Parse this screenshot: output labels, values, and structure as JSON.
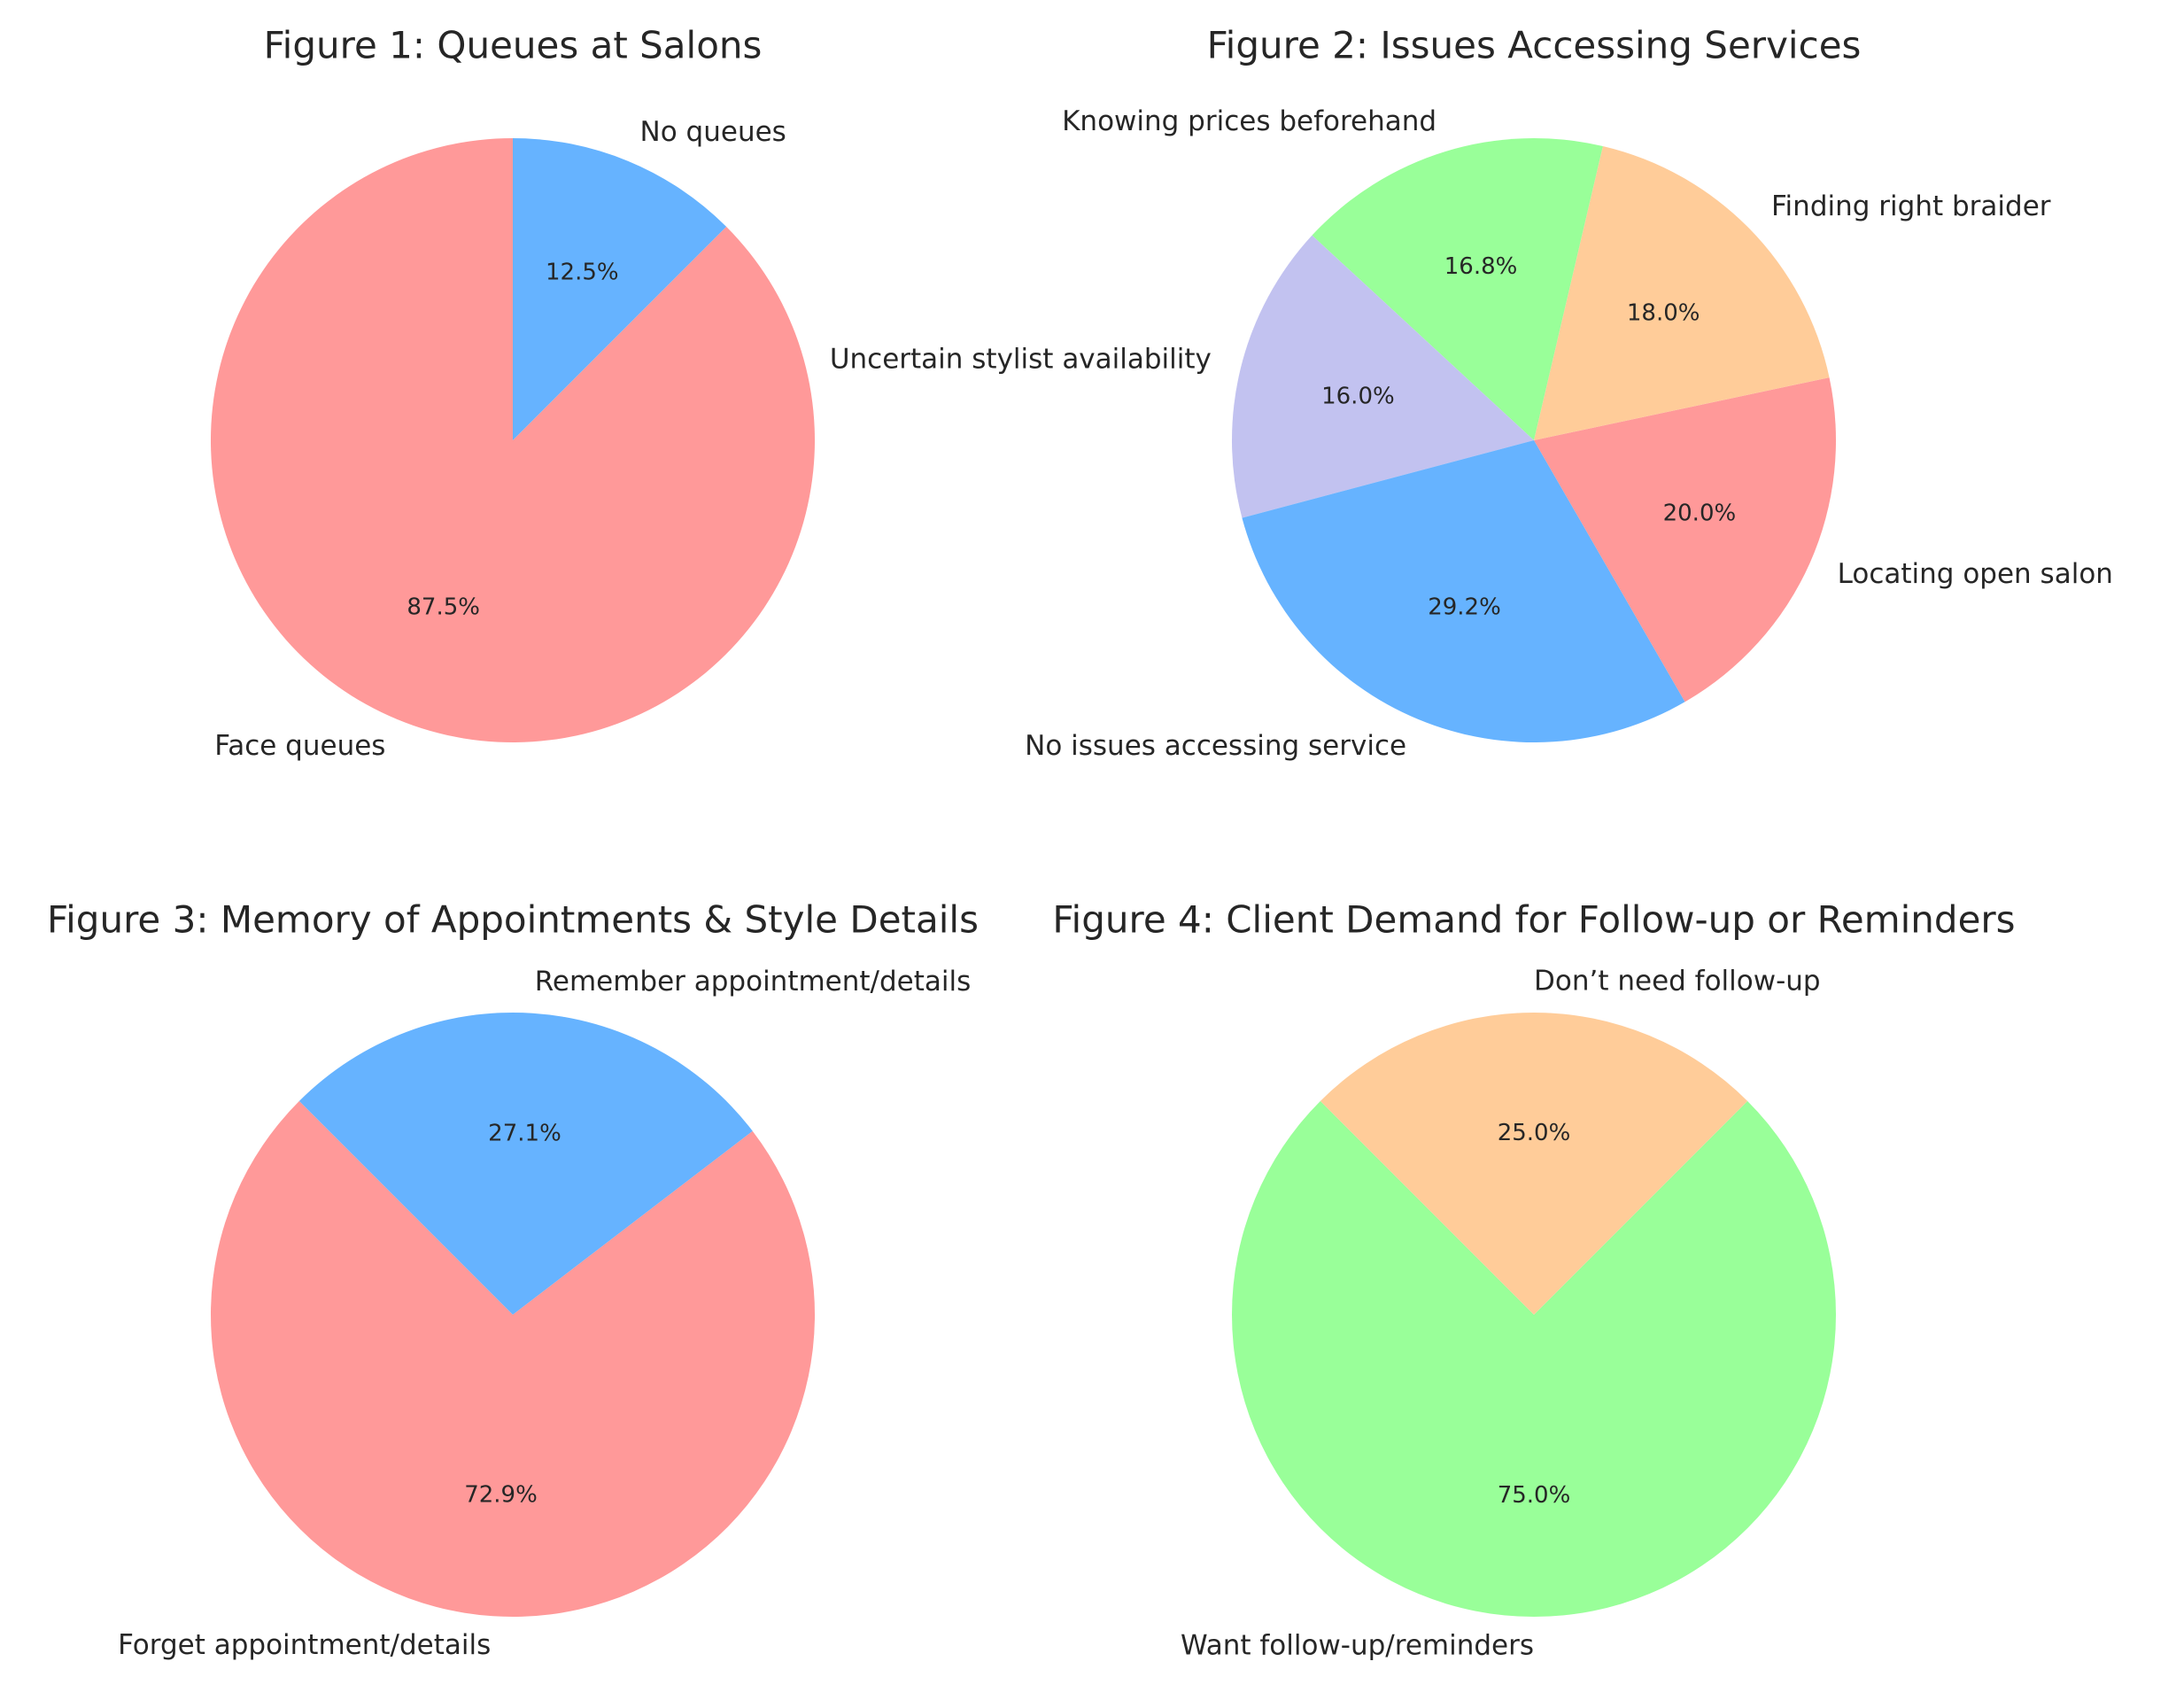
{
  "chart_data": [
    {
      "type": "pie",
      "title": "Figure 1: Queues at Salons",
      "slices": [
        {
          "label": "Face queues",
          "value": 87.5,
          "pct_label": "87.5%",
          "color": "#ff9999"
        },
        {
          "label": "No queues",
          "value": 12.5,
          "pct_label": "12.5%",
          "color": "#66b3ff"
        }
      ]
    },
    {
      "type": "pie",
      "title": "Figure 2: Issues Accessing Services",
      "slices": [
        {
          "label": "Locating open salon",
          "value": 20.0,
          "pct_label": "20.0%",
          "color": "#ff9999"
        },
        {
          "label": "Finding right braider",
          "value": 18.0,
          "pct_label": "18.0%",
          "color": "#ffcc99"
        },
        {
          "label": "Knowing prices beforehand",
          "value": 16.8,
          "pct_label": "16.8%",
          "color": "#99ff99"
        },
        {
          "label": "Uncertain stylist availability",
          "value": 16.0,
          "pct_label": "16.0%",
          "color": "#c2c2f0"
        },
        {
          "label": "No issues accessing service",
          "value": 29.2,
          "pct_label": "29.2%",
          "color": "#66b3ff"
        }
      ]
    },
    {
      "type": "pie",
      "title": "Figure 3: Memory of Appointments & Style Details",
      "slices": [
        {
          "label": "Forget appointment/details",
          "value": 72.9,
          "pct_label": "72.9%",
          "color": "#ff9999"
        },
        {
          "label": "Remember appointment/details",
          "value": 27.1,
          "pct_label": "27.1%",
          "color": "#66b3ff"
        }
      ]
    },
    {
      "type": "pie",
      "title": "Figure 4: Client Demand for Follow-up or Reminders",
      "slices": [
        {
          "label": "Want follow-up/reminders",
          "value": 75.0,
          "pct_label": "75.0%",
          "color": "#99ff99"
        },
        {
          "label": "Don’t need follow-up",
          "value": 25.0,
          "pct_label": "25.0%",
          "color": "#ffcc99"
        }
      ]
    }
  ]
}
